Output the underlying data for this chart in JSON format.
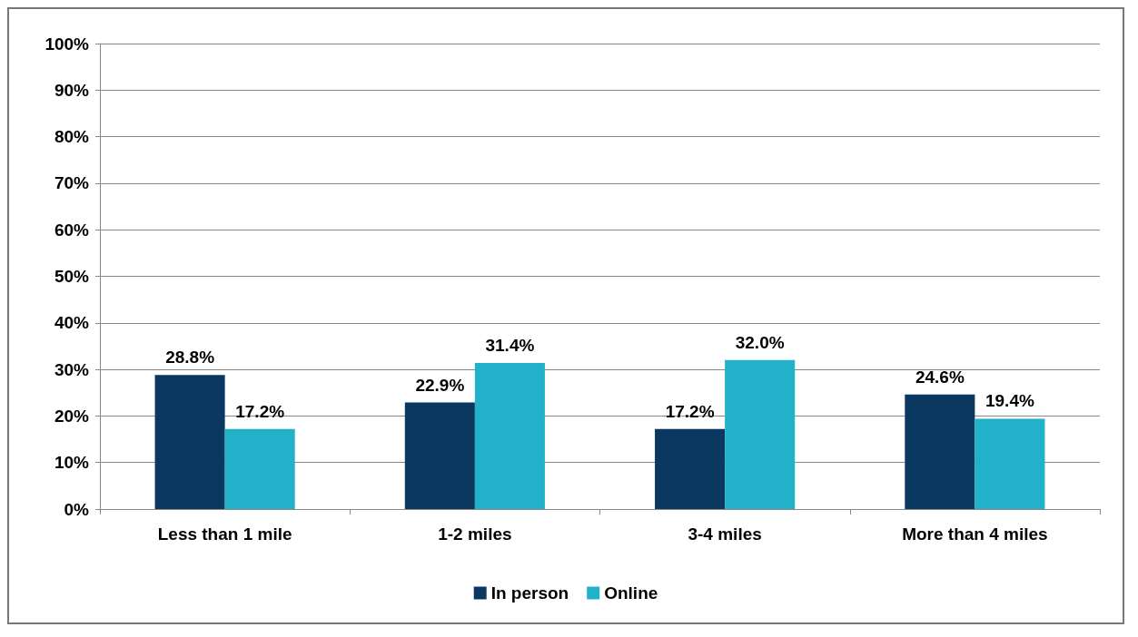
{
  "chart_data": {
    "type": "bar",
    "categories": [
      "Less than 1 mile",
      "1-2 miles",
      "3-4 miles",
      "More than 4 miles"
    ],
    "series": [
      {
        "name": "In person",
        "color": "#0b3861",
        "values": [
          28.8,
          22.9,
          17.2,
          24.6
        ],
        "value_labels": [
          "28.8%",
          "22.9%",
          "17.2%",
          "24.6%"
        ]
      },
      {
        "name": "Online",
        "color": "#21b1c9",
        "values": [
          17.2,
          31.4,
          32.0,
          19.4
        ],
        "value_labels": [
          "17.2%",
          "31.4%",
          "32.0%",
          "19.4%"
        ]
      }
    ],
    "ylim": [
      0,
      100
    ],
    "yticks": [
      {
        "value": 0,
        "label": "0%"
      },
      {
        "value": 10,
        "label": "10%"
      },
      {
        "value": 20,
        "label": "20%"
      },
      {
        "value": 30,
        "label": "30%"
      },
      {
        "value": 40,
        "label": "40%"
      },
      {
        "value": 50,
        "label": "50%"
      },
      {
        "value": 60,
        "label": "60%"
      },
      {
        "value": 70,
        "label": "70%"
      },
      {
        "value": 80,
        "label": "80%"
      },
      {
        "value": 90,
        "label": "90%"
      },
      {
        "value": 100,
        "label": "100%"
      }
    ],
    "grid": "y",
    "legend": "bottom"
  }
}
